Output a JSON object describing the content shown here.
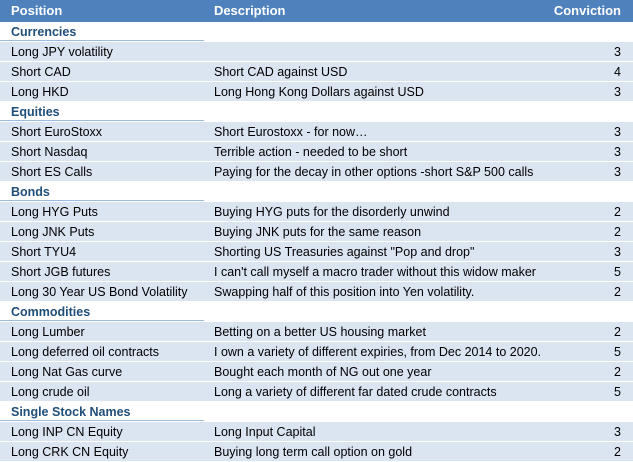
{
  "header": {
    "position": "Position",
    "description": "Description",
    "conviction": "Conviction"
  },
  "sections": [
    {
      "name": "Currencies",
      "rows": [
        {
          "position": "Long JPY volatility",
          "description": "",
          "conviction": "3"
        },
        {
          "position": "Short CAD",
          "description": "Short CAD against USD",
          "conviction": "4"
        },
        {
          "position": "Long HKD",
          "description": "Long Hong Kong Dollars against USD",
          "conviction": "3"
        }
      ]
    },
    {
      "name": "Equities",
      "rows": [
        {
          "position": "Short EuroStoxx",
          "description": "Short Eurostoxx - for now…",
          "conviction": "3"
        },
        {
          "position": "Short Nasdaq",
          "description": "Terrible action - needed to be short",
          "conviction": "3"
        },
        {
          "position": "Short ES Calls",
          "description": "Paying for the decay in other options -short S&P 500 calls",
          "conviction": "3"
        }
      ]
    },
    {
      "name": "Bonds",
      "rows": [
        {
          "position": "Long HYG Puts",
          "description": "Buying HYG puts for the disorderly unwind",
          "conviction": "2"
        },
        {
          "position": "Long JNK Puts",
          "description": "Buying JNK puts for the same reason",
          "conviction": "2"
        },
        {
          "position": "Short TYU4",
          "description": "Shorting US Treasuries against \"Pop and drop\"",
          "conviction": "3"
        },
        {
          "position": "Short JGB futures",
          "description": "I can't call myself a macro trader without this widow maker",
          "conviction": "5"
        },
        {
          "position": "Long 30 Year US Bond Volatility",
          "description": "Swapping half of this position into Yen volatility.",
          "conviction": "2"
        }
      ]
    },
    {
      "name": "Commodities",
      "rows": [
        {
          "position": "Long Lumber",
          "description": "Betting on a better US housing market",
          "conviction": "2"
        },
        {
          "position": "Long deferred oil contracts",
          "description": "I own a variety of different expiries, from Dec 2014 to 2020.",
          "conviction": "5"
        },
        {
          "position": "Long Nat Gas curve",
          "description": "Bought each month of NG out one year",
          "conviction": "2"
        },
        {
          "position": "Long crude oil",
          "description": "Long a variety of different far dated crude contracts",
          "conviction": "5"
        }
      ]
    },
    {
      "name": "Single Stock Names",
      "rows": [
        {
          "position": "Long INP CN Equity",
          "description": "Long Input Capital",
          "conviction": "3"
        },
        {
          "position": "Long CRK CN Equity",
          "description": "Buying long term call option on gold",
          "conviction": "2"
        }
      ]
    }
  ]
}
